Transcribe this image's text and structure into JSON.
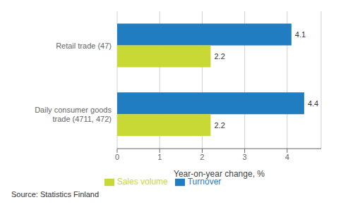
{
  "chart_data": {
    "type": "bar",
    "orientation": "horizontal",
    "categories": [
      "Daily consumer goods trade (4711, 472)",
      "Retail trade (47)"
    ],
    "series": [
      {
        "name": "Turnover",
        "color": "#1F7DC0",
        "values": [
          4.4,
          4.1
        ]
      },
      {
        "name": "Sales volume",
        "color": "#C8D835",
        "values": [
          2.2,
          2.2
        ]
      }
    ],
    "xlabel": "Year-on-year change, %",
    "xlim": [
      0,
      4.8
    ],
    "xticks": [
      0,
      1,
      2,
      3,
      4
    ],
    "grid": true,
    "data_labels": true,
    "legend": "bottom",
    "annotations": [
      "Source: Statistics Finland"
    ]
  }
}
